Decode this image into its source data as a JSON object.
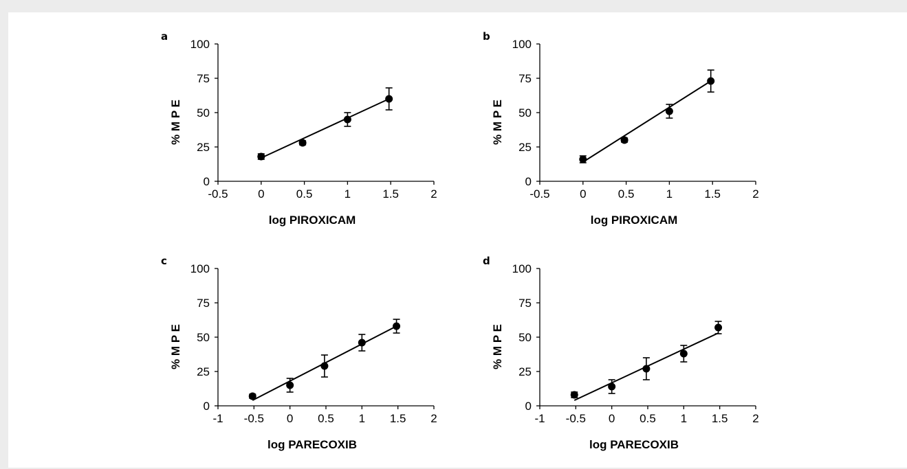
{
  "chart_data": [
    {
      "panel_label": "a",
      "type": "scatter",
      "xlabel": "log PIROXICAM",
      "ylabel": "% M P E",
      "xlim": [
        -0.5,
        2
      ],
      "ylim": [
        0,
        100
      ],
      "x_ticks": [
        "-0.5",
        "0",
        "0.5",
        "1",
        "1.5",
        "2"
      ],
      "y_ticks": [
        "0",
        "25",
        "50",
        "75",
        "100"
      ],
      "points": [
        {
          "x": 0,
          "y": 18,
          "err": 2
        },
        {
          "x": 0.48,
          "y": 28,
          "err": 1.5
        },
        {
          "x": 1,
          "y": 45,
          "err": 5
        },
        {
          "x": 1.48,
          "y": 60,
          "err": 8
        }
      ],
      "fit_line": {
        "x": [
          0,
          1.48
        ],
        "y": [
          17,
          60
        ]
      }
    },
    {
      "panel_label": "b",
      "type": "scatter",
      "xlabel": "log PIROXICAM",
      "ylabel": "% M P E",
      "xlim": [
        -0.5,
        2
      ],
      "ylim": [
        0,
        100
      ],
      "x_ticks": [
        "-0.5",
        "0",
        "0.5",
        "1",
        "1.5",
        "2"
      ],
      "y_ticks": [
        "0",
        "25",
        "50",
        "75",
        "100"
      ],
      "points": [
        {
          "x": 0,
          "y": 16,
          "err": 2.5
        },
        {
          "x": 0.48,
          "y": 30,
          "err": 1.5
        },
        {
          "x": 1,
          "y": 51,
          "err": 5
        },
        {
          "x": 1.48,
          "y": 73,
          "err": 8
        }
      ],
      "fit_line": {
        "x": [
          0,
          1.48
        ],
        "y": [
          14,
          73
        ]
      }
    },
    {
      "panel_label": "c",
      "type": "scatter",
      "xlabel": "log PARECOXIB",
      "ylabel": "% M P E",
      "xlim": [
        -1,
        2
      ],
      "ylim": [
        0,
        100
      ],
      "x_ticks": [
        "-1",
        "-0.5",
        "0",
        "0.5",
        "1",
        "1.5",
        "2"
      ],
      "y_ticks": [
        "0",
        "25",
        "50",
        "75",
        "100"
      ],
      "points": [
        {
          "x": -0.52,
          "y": 7,
          "err": 1.5
        },
        {
          "x": 0,
          "y": 15,
          "err": 5
        },
        {
          "x": 0.48,
          "y": 29,
          "err": 8
        },
        {
          "x": 1,
          "y": 46,
          "err": 6
        },
        {
          "x": 1.48,
          "y": 58,
          "err": 5
        }
      ],
      "fit_line": {
        "x": [
          -0.52,
          1.48
        ],
        "y": [
          4,
          58
        ]
      }
    },
    {
      "panel_label": "d",
      "type": "scatter",
      "xlabel": "log PARECOXIB",
      "ylabel": "% M P E",
      "xlim": [
        -1,
        2
      ],
      "ylim": [
        0,
        100
      ],
      "x_ticks": [
        "-1",
        "-0.5",
        "0",
        "0.5",
        "1",
        "1.5",
        "2"
      ],
      "y_ticks": [
        "0",
        "25",
        "50",
        "75",
        "100"
      ],
      "points": [
        {
          "x": -0.52,
          "y": 8,
          "err": 2
        },
        {
          "x": 0,
          "y": 14,
          "err": 5
        },
        {
          "x": 0.48,
          "y": 27,
          "err": 8
        },
        {
          "x": 1,
          "y": 38,
          "err": 6
        },
        {
          "x": 1.48,
          "y": 57,
          "err": 4.5
        }
      ],
      "fit_line": {
        "x": [
          -0.52,
          1.48
        ],
        "y": [
          4,
          53
        ]
      }
    }
  ]
}
